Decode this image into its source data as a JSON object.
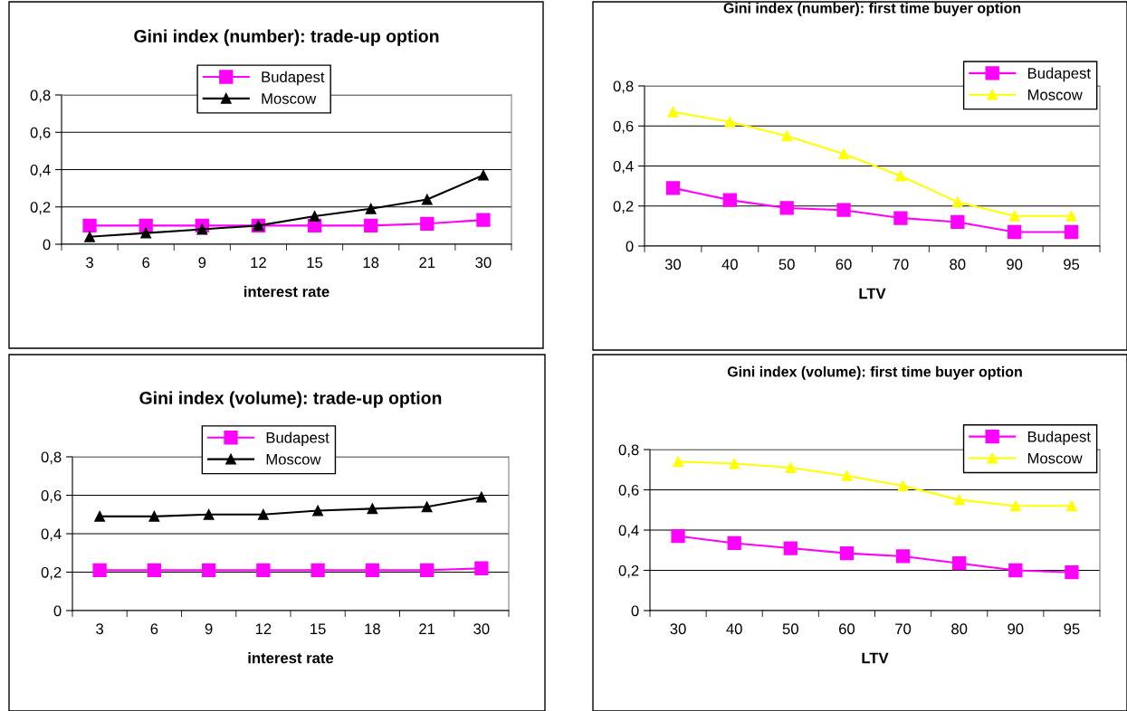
{
  "chart_data": [
    {
      "type": "line",
      "title": "Gini index (number): trade-up option",
      "xlabel": "interest rate",
      "categories": [
        "3",
        "6",
        "9",
        "12",
        "15",
        "18",
        "21",
        "30"
      ],
      "ylim": [
        0,
        0.8
      ],
      "yticks": [
        0,
        {
          "value": 0.2,
          "label": "0,2"
        },
        {
          "value": 0.4,
          "label": "0,4"
        },
        {
          "value": 0.6,
          "label": "0,6"
        },
        {
          "value": 0.8,
          "label": "0,8"
        }
      ],
      "grid": "y",
      "legend": "top",
      "series": [
        {
          "name": "Budapest",
          "color": "#ff00ff",
          "marker": "square",
          "values": [
            0.1,
            0.1,
            0.1,
            0.1,
            0.1,
            0.1,
            0.11,
            0.13
          ]
        },
        {
          "name": "Moscow",
          "color": "#000000",
          "marker": "triangle",
          "values": [
            0.04,
            0.06,
            0.08,
            0.1,
            0.15,
            0.19,
            0.24,
            0.37
          ]
        }
      ]
    },
    {
      "type": "line",
      "title": "Gini index (number): first time buyer option",
      "xlabel": "LTV",
      "categories": [
        "30",
        "40",
        "50",
        "60",
        "70",
        "80",
        "90",
        "95"
      ],
      "ylim": [
        0,
        0.8
      ],
      "yticks": [
        0,
        {
          "value": 0.2,
          "label": "0,2"
        },
        {
          "value": 0.4,
          "label": "0,4"
        },
        {
          "value": 0.6,
          "label": "0,6"
        },
        {
          "value": 0.8,
          "label": "0,8"
        }
      ],
      "grid": "y",
      "legend": "top right",
      "series": [
        {
          "name": "Budapest",
          "color": "#ff00ff",
          "marker": "square",
          "values": [
            0.29,
            0.23,
            0.19,
            0.18,
            0.14,
            0.12,
            0.07,
            0.07
          ]
        },
        {
          "name": "Moscow",
          "color": "#ffff00",
          "marker": "triangle",
          "values": [
            0.67,
            0.62,
            0.55,
            0.46,
            0.35,
            0.22,
            0.15,
            0.15
          ]
        }
      ]
    },
    {
      "type": "line",
      "title": "Gini index (volume): trade-up option",
      "xlabel": "interest rate",
      "categories": [
        "3",
        "6",
        "9",
        "12",
        "15",
        "18",
        "21",
        "30"
      ],
      "ylim": [
        0,
        0.8
      ],
      "yticks": [
        0,
        {
          "value": 0.2,
          "label": "0,2"
        },
        {
          "value": 0.4,
          "label": "0,4"
        },
        {
          "value": 0.6,
          "label": "0,6"
        },
        {
          "value": 0.8,
          "label": "0,8"
        }
      ],
      "grid": "y",
      "legend": "top",
      "series": [
        {
          "name": "Budapest",
          "color": "#ff00ff",
          "marker": "square",
          "values": [
            0.21,
            0.21,
            0.21,
            0.21,
            0.21,
            0.21,
            0.21,
            0.22
          ]
        },
        {
          "name": "Moscow",
          "color": "#000000",
          "marker": "triangle",
          "values": [
            0.49,
            0.49,
            0.5,
            0.5,
            0.52,
            0.53,
            0.54,
            0.59
          ]
        }
      ]
    },
    {
      "type": "line",
      "title": "Gini index (volume): first time buyer option",
      "xlabel": "LTV",
      "categories": [
        "30",
        "40",
        "50",
        "60",
        "70",
        "80",
        "90",
        "95"
      ],
      "ylim": [
        0,
        0.8
      ],
      "yticks": [
        0,
        {
          "value": 0.2,
          "label": "0,2"
        },
        {
          "value": 0.4,
          "label": "0,4"
        },
        {
          "value": 0.6,
          "label": "0,6"
        },
        {
          "value": 0.8,
          "label": "0,8"
        }
      ],
      "grid": "y",
      "legend": "top right",
      "series": [
        {
          "name": "Budapest",
          "color": "#ff00ff",
          "marker": "square",
          "values": [
            0.37,
            0.335,
            0.31,
            0.285,
            0.27,
            0.235,
            0.2,
            0.19
          ]
        },
        {
          "name": "Moscow",
          "color": "#ffff00",
          "marker": "triangle",
          "values": [
            0.74,
            0.73,
            0.71,
            0.67,
            0.62,
            0.55,
            0.52,
            0.52
          ]
        }
      ]
    }
  ]
}
